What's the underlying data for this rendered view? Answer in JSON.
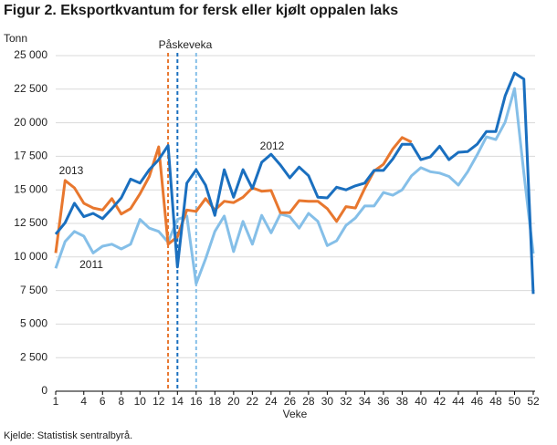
{
  "chart_data": {
    "type": "line",
    "title": "Figur 2. Eksportkvantum for fersk eller kjølt oppalen laks",
    "y_label": "Tonn",
    "x_label": "Veke",
    "source": "Kjelde: Statistisk sentralbyrå.",
    "annotation": "Påskeveka",
    "x": [
      1,
      2,
      3,
      4,
      5,
      6,
      7,
      8,
      9,
      10,
      11,
      12,
      13,
      14,
      15,
      16,
      17,
      18,
      19,
      20,
      21,
      22,
      23,
      24,
      25,
      26,
      27,
      28,
      29,
      30,
      31,
      32,
      33,
      34,
      35,
      36,
      37,
      38,
      39,
      40,
      41,
      42,
      43,
      44,
      45,
      46,
      47,
      48,
      49,
      50,
      51,
      52
    ],
    "xlim": [
      1,
      52
    ],
    "xticks": [
      1,
      4,
      6,
      8,
      10,
      12,
      14,
      16,
      18,
      20,
      22,
      24,
      26,
      28,
      30,
      32,
      34,
      36,
      38,
      40,
      42,
      44,
      46,
      48,
      50,
      52
    ],
    "ylim": [
      0,
      25000
    ],
    "yticks": [
      0,
      {
        "value": 2500,
        "label": "2 500"
      },
      {
        "value": 5000,
        "label": "5 000"
      },
      {
        "value": 7500,
        "label": "7 500"
      },
      {
        "value": 10000,
        "label": "10 000"
      },
      {
        "value": 12500,
        "label": "12 500"
      },
      {
        "value": 15000,
        "label": "15 000"
      },
      {
        "value": 17500,
        "label": "17 500"
      },
      {
        "value": 20000,
        "label": "20 000"
      },
      {
        "value": 22500,
        "label": "22 500"
      },
      {
        "value": 25000,
        "label": "25 000"
      }
    ],
    "grid": true,
    "markers": [
      {
        "x": 13,
        "color": "#e8772e"
      },
      {
        "x": 14,
        "color": "#1a6fbf"
      },
      {
        "x": 16,
        "color": "#85bfe8"
      }
    ],
    "series": [
      {
        "name": "2011",
        "color": "#85bfe8",
        "values": [
          9150,
          11150,
          11900,
          11550,
          10300,
          10800,
          10950,
          10600,
          10950,
          12800,
          12150,
          11900,
          11100,
          12800,
          13050,
          8000,
          9850,
          11900,
          13050,
          10400,
          12650,
          10950,
          13100,
          11800,
          13200,
          13000,
          12150,
          13250,
          12650,
          10850,
          11200,
          12350,
          12900,
          13800,
          13800,
          14800,
          14600,
          15000,
          16050,
          16650,
          16350,
          16250,
          16000,
          15350,
          16350,
          17600,
          18950,
          18750,
          20050,
          22550,
          16250,
          10250
        ]
      },
      {
        "name": "2013",
        "color": "#e8772e",
        "values": [
          10300,
          15700,
          15150,
          14000,
          13650,
          13500,
          14350,
          13200,
          13600,
          14700,
          16000,
          18200,
          10950,
          11500,
          13500,
          13400,
          14350,
          13500,
          14150,
          14050,
          14450,
          15150,
          14900,
          14950,
          13300,
          13300,
          14200,
          14150,
          14150,
          13600,
          12650,
          13750,
          13650,
          15100,
          16400,
          16900,
          18050,
          18900,
          18550,
          null,
          null,
          null,
          null,
          null,
          null,
          null,
          null,
          null,
          null,
          null,
          null,
          null
        ]
      },
      {
        "name": "2012",
        "color": "#1a6fbf",
        "values": [
          11700,
          12550,
          14000,
          13000,
          13250,
          12850,
          13600,
          14400,
          15800,
          15500,
          16500,
          17250,
          18300,
          9250,
          15500,
          16500,
          15350,
          13100,
          16500,
          14450,
          16500,
          15100,
          17050,
          17650,
          16850,
          15900,
          16700,
          16050,
          14450,
          14400,
          15200,
          15000,
          15300,
          15500,
          16450,
          16450,
          17300,
          18400,
          18400,
          17250,
          17450,
          18250,
          17250,
          17800,
          17850,
          18400,
          19350,
          19350,
          22000,
          23700,
          23250,
          7250
        ]
      }
    ]
  }
}
